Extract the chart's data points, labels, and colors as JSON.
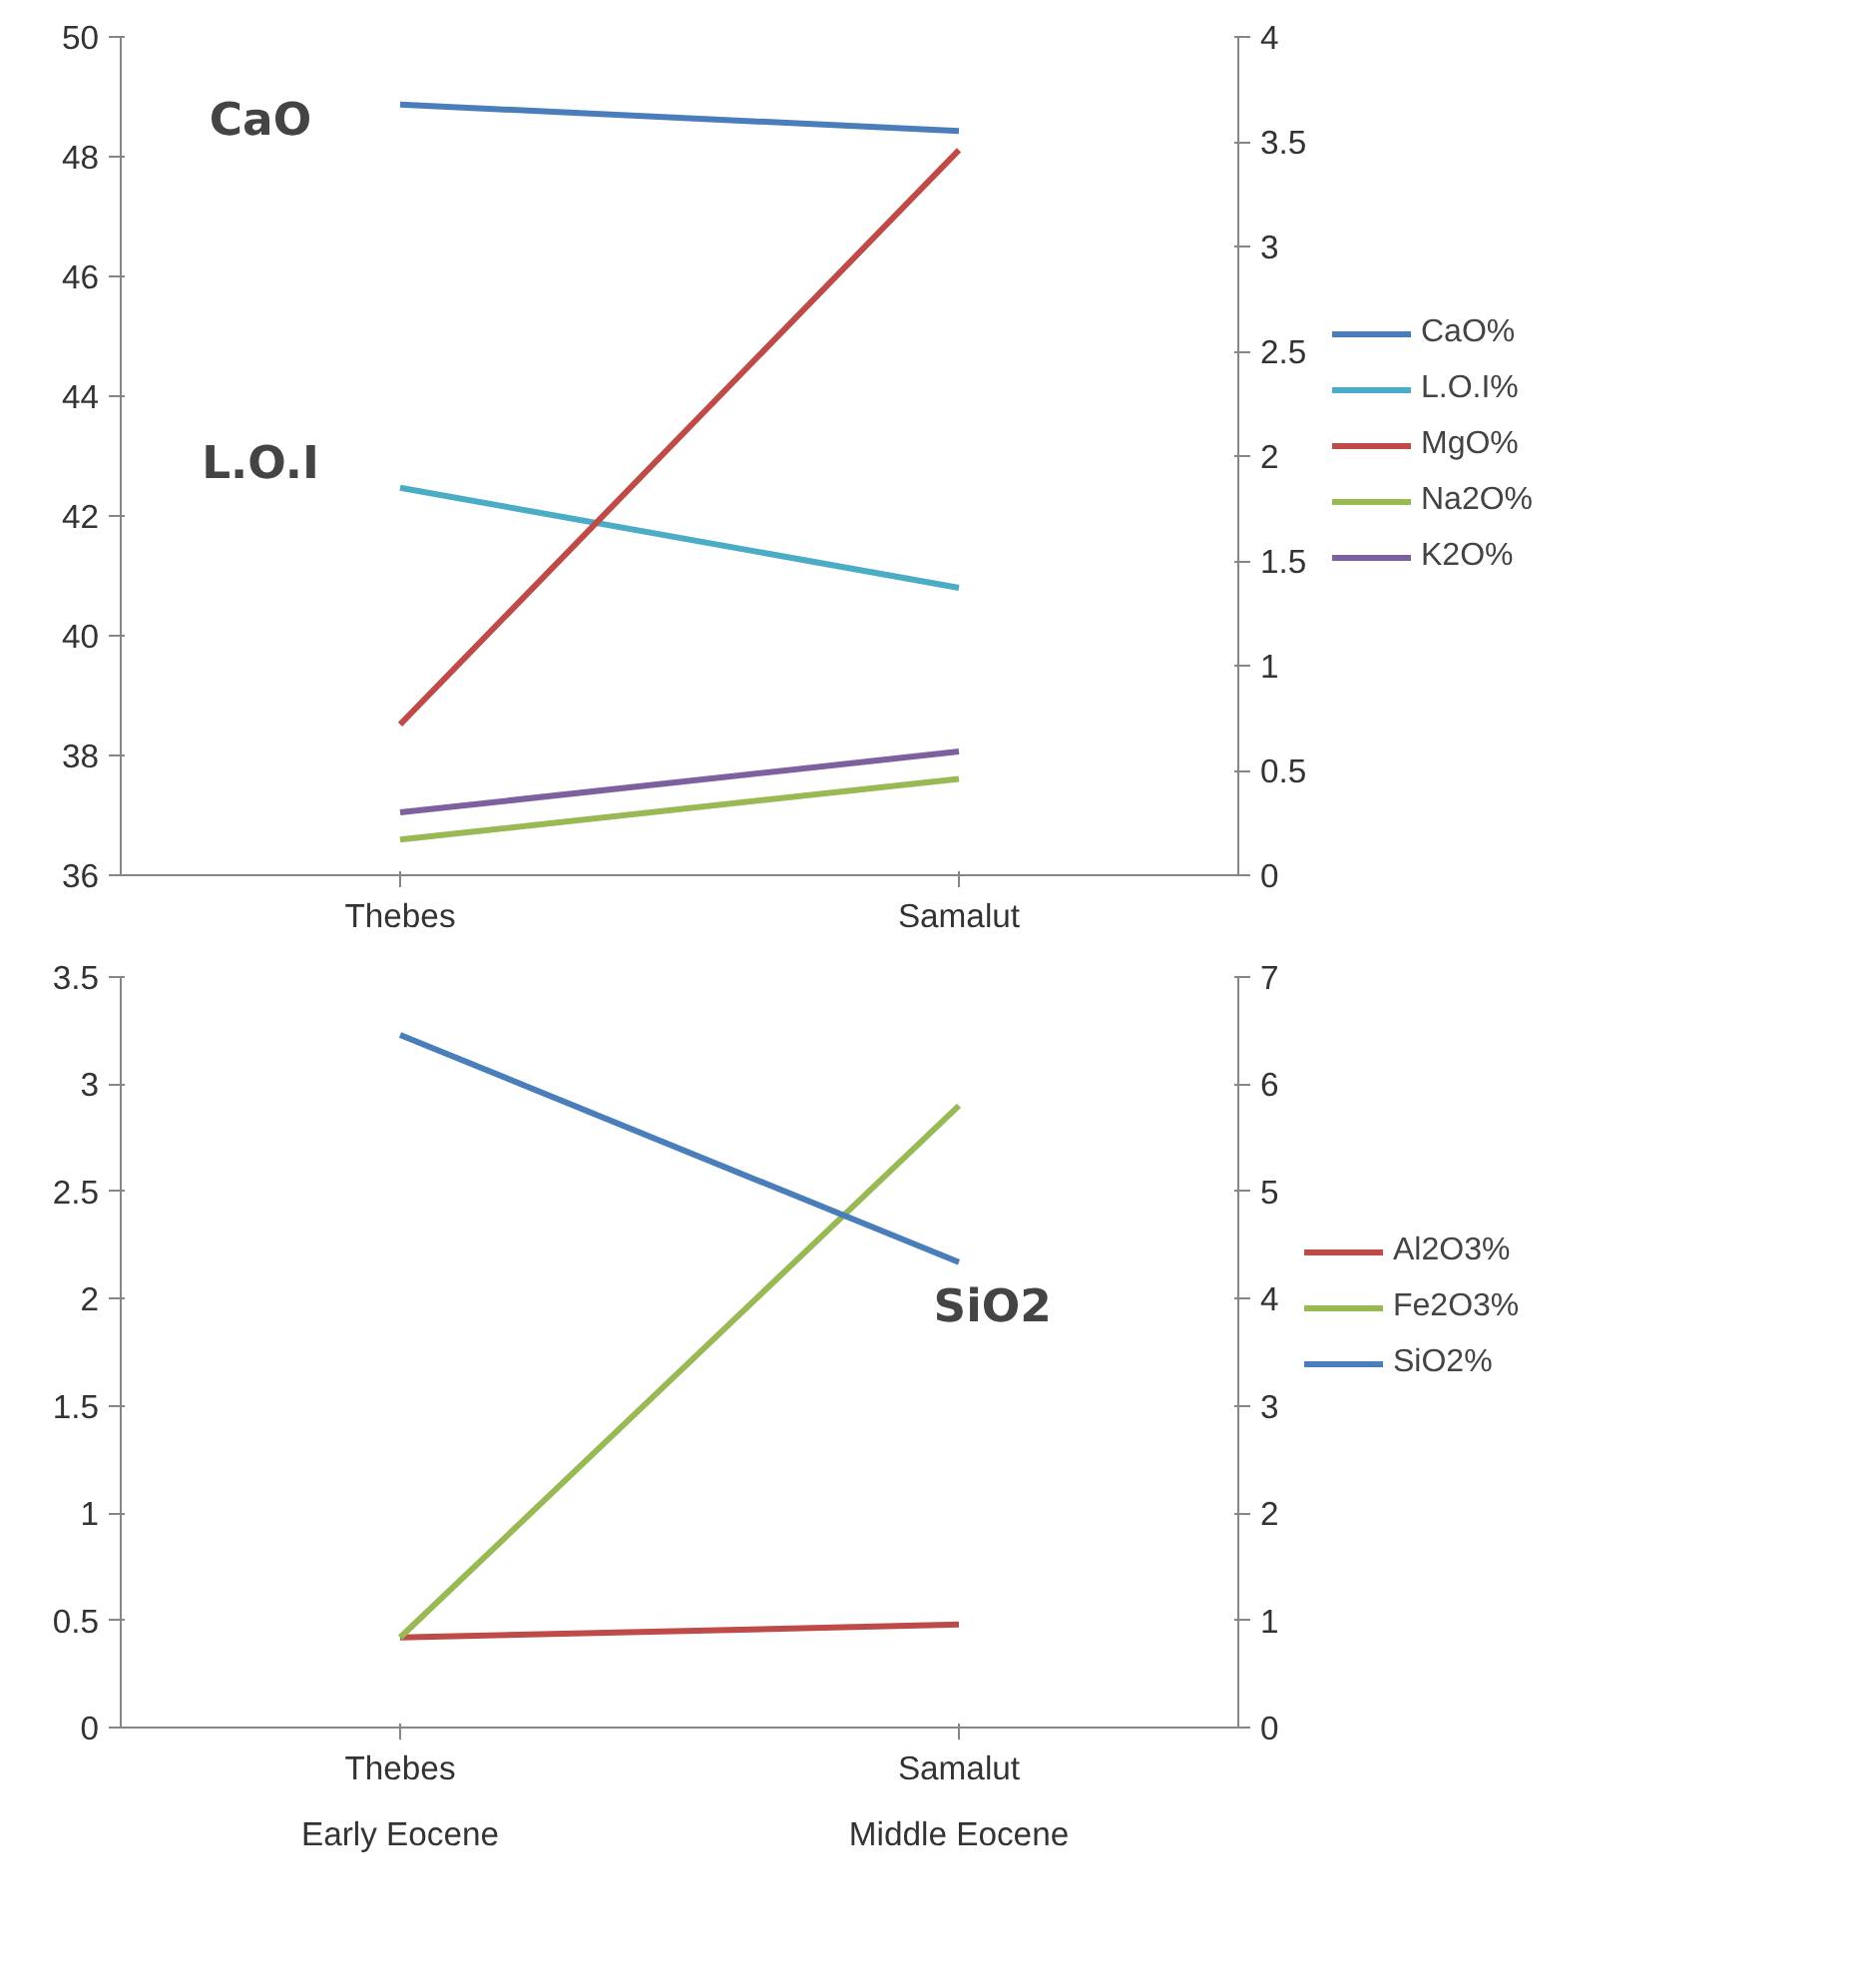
{
  "chart_data": [
    {
      "type": "line",
      "categories": [
        "Thebes",
        "Samalut"
      ],
      "ylim": [
        36,
        50
      ],
      "yticks": [
        36,
        38,
        40,
        42,
        44,
        46,
        48,
        50
      ],
      "y2lim": [
        0,
        4
      ],
      "y2ticks": [
        0,
        0.5,
        1,
        1.5,
        2,
        2.5,
        3,
        3.5,
        4
      ],
      "grid": false,
      "legend": "right",
      "series": [
        {
          "name": "CaO%",
          "color": "#4a7ebb",
          "values": [
            48.87,
            48.43
          ],
          "axis": "y"
        },
        {
          "name": "L.O.I%",
          "color": "#4bacc6",
          "values": [
            42.47,
            40.8
          ],
          "axis": "y"
        },
        {
          "name": "MgO%",
          "color": "#be4b48",
          "values": [
            0.72,
            3.46
          ],
          "axis": "y2"
        },
        {
          "name": "Na2O%",
          "color": "#98b954",
          "values": [
            0.17,
            0.46
          ],
          "axis": "y2"
        },
        {
          "name": "K2O%",
          "color": "#7d60a0",
          "values": [
            0.3,
            0.59
          ],
          "axis": "y2"
        }
      ],
      "annotations": [
        "CaO",
        "L.O.I"
      ]
    },
    {
      "type": "line",
      "categories": [
        "Thebes",
        "Samalut"
      ],
      "ylim": [
        0,
        3.5
      ],
      "yticks": [
        0,
        0.5,
        1,
        1.5,
        2,
        2.5,
        3,
        3.5
      ],
      "y2lim": [
        0,
        7
      ],
      "y2ticks": [
        0,
        1,
        2,
        3,
        4,
        5,
        6,
        7
      ],
      "grid": false,
      "legend": "right",
      "series": [
        {
          "name": "Al2O3%",
          "color": "#be4b48",
          "values": [
            0.42,
            0.48
          ],
          "axis": "y"
        },
        {
          "name": "Fe2O3%",
          "color": "#98b954",
          "values": [
            0.42,
            2.9
          ],
          "axis": "y"
        },
        {
          "name": "SiO2%",
          "color": "#4a7ebb",
          "values": [
            6.46,
            4.34
          ],
          "axis": "y2"
        }
      ],
      "annotations": [
        "SiO2",
        "Early Eocene",
        "Middle Eocene"
      ]
    }
  ]
}
